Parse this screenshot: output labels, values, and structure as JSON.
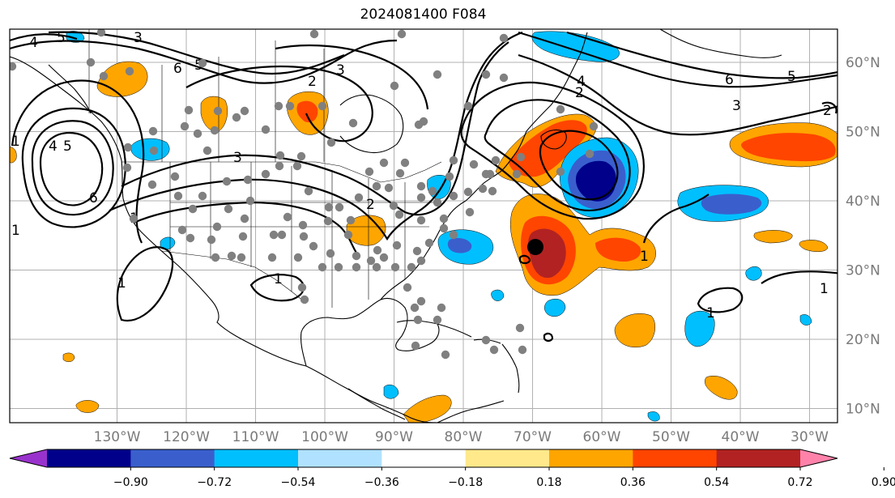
{
  "title": "2024081400 F084",
  "map": {
    "lat_ticks": [
      {
        "label": "60°N",
        "lat": 60
      },
      {
        "label": "50°N",
        "lat": 50
      },
      {
        "label": "40°N",
        "lat": 40
      },
      {
        "label": "30°N",
        "lat": 30
      },
      {
        "label": "20°N",
        "lat": 20
      },
      {
        "label": "10°N",
        "lat": 10
      }
    ],
    "lon_ticks": [
      {
        "label": "130°W",
        "lon": -130
      },
      {
        "label": "120°W",
        "lon": -120
      },
      {
        "label": "110°W",
        "lon": -110
      },
      {
        "label": "100°W",
        "lon": -100
      },
      {
        "label": "90°W",
        "lon": -90
      },
      {
        "label": "80°W",
        "lon": -80
      },
      {
        "label": "70°W",
        "lon": -70
      },
      {
        "label": "60°W",
        "lon": -60
      },
      {
        "label": "50°W",
        "lon": -50
      },
      {
        "label": "40°W",
        "lon": -40
      },
      {
        "label": "30°W",
        "lon": -30
      }
    ],
    "contour_labels": [
      "6",
      "5",
      "4",
      "3",
      "2",
      "1"
    ],
    "storm_marker_color": "#000000",
    "station_marker_color": "#808080"
  },
  "colorbar": {
    "ticks": [
      "−0.90",
      "−0.72",
      "−0.54",
      "−0.36",
      "−0.18",
      "0.18",
      "0.36",
      "0.54",
      "0.72",
      "0.90"
    ],
    "colors": [
      "#9932cc",
      "#00008b",
      "#3a5fcd",
      "#00bfff",
      "#b0e2ff",
      "#ffffff",
      "#ffe98a",
      "#ffa500",
      "#ff4500",
      "#b22222",
      "#ff82ab"
    ]
  }
}
